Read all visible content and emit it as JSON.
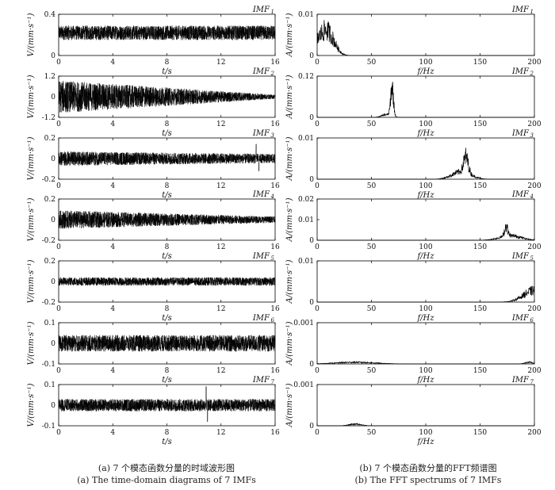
{
  "captions": {
    "left_zh": "(a) 7 个模态函数分量的时域波形图",
    "left_en": "(a) The time-domain diagrams of 7 IMFs",
    "right_zh": "(b) 7 个模态函数分量的FFT频谱图",
    "right_en": "(b) The FFT spectrums of 7 IMFs"
  },
  "chart_data": [
    {
      "id": "t1",
      "type": "line",
      "panel": "time-domain",
      "label": "IMF",
      "sub": "1",
      "xlabel": "t/s",
      "ylabel": "V/(mm·s⁻¹)",
      "xlim": [
        0,
        16
      ],
      "ylim": [
        0,
        0.4
      ],
      "xticks": [
        0,
        4,
        8,
        12,
        16
      ],
      "yticks": [
        "0",
        "0.4"
      ],
      "envelope": {
        "center": 0.22,
        "amp": [
          0.07,
          0.07
        ],
        "spikes": []
      }
    },
    {
      "id": "t2",
      "type": "line",
      "panel": "time-domain",
      "label": "IMF",
      "sub": "2",
      "xlabel": "t/s",
      "ylabel": "V/(mm·s⁻¹)",
      "xlim": [
        0,
        16
      ],
      "ylim": [
        -1.2,
        1.2
      ],
      "xticks": [
        0,
        4,
        8,
        12,
        16
      ],
      "yticks": [
        "-1.2",
        "0",
        "1.2"
      ],
      "envelope": {
        "center": 0,
        "amp": [
          0.95,
          0.12
        ],
        "spikes": []
      }
    },
    {
      "id": "t3",
      "type": "line",
      "panel": "time-domain",
      "label": "IMF",
      "sub": "3",
      "xlabel": "t/s",
      "ylabel": "V/(mm·s⁻¹)",
      "xlim": [
        0,
        16
      ],
      "ylim": [
        -0.2,
        0.2
      ],
      "xticks": [
        0,
        4,
        8,
        12,
        16
      ],
      "yticks": [
        "-0.2",
        "0",
        "0.2"
      ],
      "envelope": {
        "center": 0,
        "amp": [
          0.07,
          0.045
        ],
        "spikes": [
          [
            14.6,
            0.14
          ],
          [
            14.8,
            -0.12
          ]
        ]
      }
    },
    {
      "id": "t4",
      "type": "line",
      "panel": "time-domain",
      "label": "IMF",
      "sub": "4",
      "xlabel": "t/s",
      "ylabel": "V/(mm·s⁻¹)",
      "xlim": [
        0,
        16
      ],
      "ylim": [
        -0.2,
        0.2
      ],
      "xticks": [
        0,
        4,
        8,
        12,
        16
      ],
      "yticks": [
        "-0.2",
        "0",
        "0.2"
      ],
      "envelope": {
        "center": 0,
        "amp": [
          0.09,
          0.03
        ],
        "spikes": []
      }
    },
    {
      "id": "t5",
      "type": "line",
      "panel": "time-domain",
      "label": "IMF",
      "sub": "5",
      "xlabel": "t/s",
      "ylabel": "V/(mm·s⁻¹)",
      "xlim": [
        0,
        16
      ],
      "ylim": [
        -0.2,
        0.2
      ],
      "xticks": [
        0,
        4,
        8,
        12,
        16
      ],
      "yticks": [
        "-0.2",
        "0",
        "0.2"
      ],
      "envelope": {
        "center": 0,
        "amp": [
          0.04,
          0.04
        ],
        "spikes": []
      }
    },
    {
      "id": "t6",
      "type": "line",
      "panel": "time-domain",
      "label": "IMF",
      "sub": "6",
      "xlabel": "t/s",
      "ylabel": "V/(mm·s⁻¹)",
      "xlim": [
        0,
        16
      ],
      "ylim": [
        -0.1,
        0.1
      ],
      "xticks": [
        0,
        4,
        8,
        12,
        16
      ],
      "yticks": [
        "-0.1",
        "0",
        "0.1"
      ],
      "envelope": {
        "center": 0,
        "amp": [
          0.04,
          0.04
        ],
        "spikes": []
      }
    },
    {
      "id": "t7",
      "type": "line",
      "panel": "time-domain",
      "label": "IMF",
      "sub": "7",
      "xlabel": "t/s",
      "ylabel": "V/(mm·s⁻¹)",
      "xlim": [
        0,
        16
      ],
      "ylim": [
        -0.1,
        0.1
      ],
      "xticks": [
        0,
        4,
        8,
        12,
        16
      ],
      "yticks": [
        "-0.1",
        "0",
        "0.1"
      ],
      "envelope": {
        "center": 0,
        "amp": [
          0.03,
          0.03
        ],
        "spikes": [
          [
            10.9,
            0.09
          ],
          [
            11.0,
            -0.08
          ]
        ]
      }
    },
    {
      "id": "f1",
      "type": "line",
      "panel": "fft",
      "label": "IMF",
      "sub": "1",
      "xlabel": "f/Hz",
      "ylabel": "A/(mm·s⁻¹)",
      "xlim": [
        0,
        200
      ],
      "ylim": [
        0,
        0.01
      ],
      "xticks": [
        0,
        50,
        100,
        150,
        200
      ],
      "yticks": [
        "0",
        "0.01"
      ],
      "peaks": [
        {
          "f": 5,
          "w": 10,
          "h": 0.0045
        },
        {
          "f": 12,
          "w": 8,
          "h": 0.0025
        }
      ]
    },
    {
      "id": "f2",
      "type": "line",
      "panel": "fft",
      "label": "IMF",
      "sub": "2",
      "xlabel": "f/Hz",
      "ylabel": "A/(mm·s⁻¹)",
      "xlim": [
        0,
        200
      ],
      "ylim": [
        0,
        0.12
      ],
      "xticks": [
        0,
        50,
        100,
        150,
        200
      ],
      "yticks": [
        "0",
        "0.12"
      ],
      "peaks": [
        {
          "f": 69,
          "w": 1.8,
          "h": 0.085
        },
        {
          "f": 64,
          "w": 6,
          "h": 0.008
        }
      ]
    },
    {
      "id": "f3",
      "type": "line",
      "panel": "fft",
      "label": "IMF",
      "sub": "3",
      "xlabel": "f/Hz",
      "ylabel": "A/(mm·s⁻¹)",
      "xlim": [
        0,
        200
      ],
      "ylim": [
        0,
        0.01
      ],
      "xticks": [
        0,
        50,
        100,
        150,
        200
      ],
      "yticks": [
        "0",
        "0.01"
      ],
      "peaks": [
        {
          "f": 137,
          "w": 3,
          "h": 0.0038
        },
        {
          "f": 133,
          "w": 12,
          "h": 0.0018
        }
      ]
    },
    {
      "id": "f4",
      "type": "line",
      "panel": "fft",
      "label": "IMF",
      "sub": "4",
      "xlabel": "f/Hz",
      "ylabel": "A/(mm·s⁻¹)",
      "xlim": [
        0,
        200
      ],
      "ylim": [
        0,
        0.02
      ],
      "xticks": [
        0,
        50,
        100,
        150,
        200
      ],
      "yticks": [
        "0",
        "0.01",
        "0.02"
      ],
      "peaks": [
        {
          "f": 174,
          "w": 2,
          "h": 0.005
        },
        {
          "f": 178,
          "w": 14,
          "h": 0.0022
        }
      ]
    },
    {
      "id": "f5",
      "type": "line",
      "panel": "fft",
      "label": "IMF",
      "sub": "5",
      "xlabel": "f/Hz",
      "ylabel": "A/(mm·s⁻¹)",
      "xlim": [
        0,
        200
      ],
      "ylim": [
        0,
        0.01
      ],
      "xticks": [
        0,
        50,
        100,
        150,
        200
      ],
      "yticks": [
        "0",
        "0.01"
      ],
      "peaks": [
        {
          "f": 200,
          "w": 14,
          "h": 0.0028
        }
      ]
    },
    {
      "id": "f6",
      "type": "line",
      "panel": "fft",
      "label": "IMF",
      "sub": "6",
      "xlabel": "f/Hz",
      "ylabel": "A/(mm·s⁻¹)",
      "xlim": [
        0,
        200
      ],
      "ylim": [
        0,
        0.001
      ],
      "xticks": [
        0,
        50,
        100,
        150,
        200
      ],
      "yticks": [
        "0",
        "0.001"
      ],
      "peaks": [
        {
          "f": 35,
          "w": 25,
          "h": 4e-05
        },
        {
          "f": 195,
          "w": 5,
          "h": 4e-05
        }
      ]
    },
    {
      "id": "f7",
      "type": "line",
      "panel": "fft",
      "label": "IMF",
      "sub": "7",
      "xlabel": "f/Hz",
      "ylabel": "A/(mm·s⁻¹)",
      "xlim": [
        0,
        200
      ],
      "ylim": [
        0,
        0.001
      ],
      "xticks": [
        0,
        50,
        100,
        150,
        200
      ],
      "yticks": [
        "0",
        "0.001"
      ],
      "peaks": [
        {
          "f": 35,
          "w": 8,
          "h": 4e-05
        }
      ]
    }
  ]
}
